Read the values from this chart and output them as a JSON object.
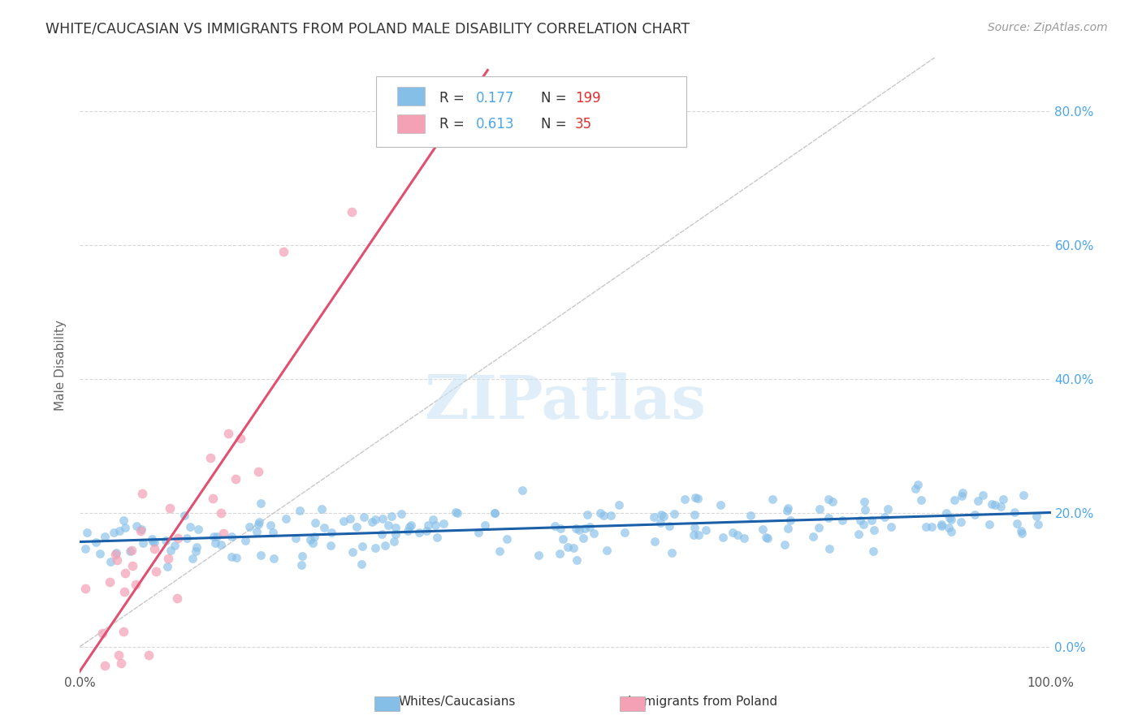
{
  "title": "WHITE/CAUCASIAN VS IMMIGRANTS FROM POLAND MALE DISABILITY CORRELATION CHART",
  "source": "Source: ZipAtlas.com",
  "ylabel": "Male Disability",
  "blue_R": 0.177,
  "blue_N": 199,
  "pink_R": 0.613,
  "pink_N": 35,
  "blue_color": "#85bfe8",
  "pink_color": "#f4a0b5",
  "blue_line_color": "#1a5fa8",
  "pink_line_color": "#e05070",
  "diagonal_color": "#c8c8c8",
  "background_color": "#ffffff",
  "grid_color": "#d8d8d8",
  "title_color": "#333333",
  "source_color": "#999999",
  "legend_R_color": "#4da6e8",
  "legend_N_color": "#e03030",
  "right_axis_color": "#4da6e8",
  "xlim": [
    0.0,
    1.0
  ],
  "ylim": [
    -0.04,
    0.88
  ],
  "yticks": [
    0.0,
    0.2,
    0.4,
    0.6,
    0.8
  ],
  "blue_seed": 42,
  "pink_seed": 99
}
